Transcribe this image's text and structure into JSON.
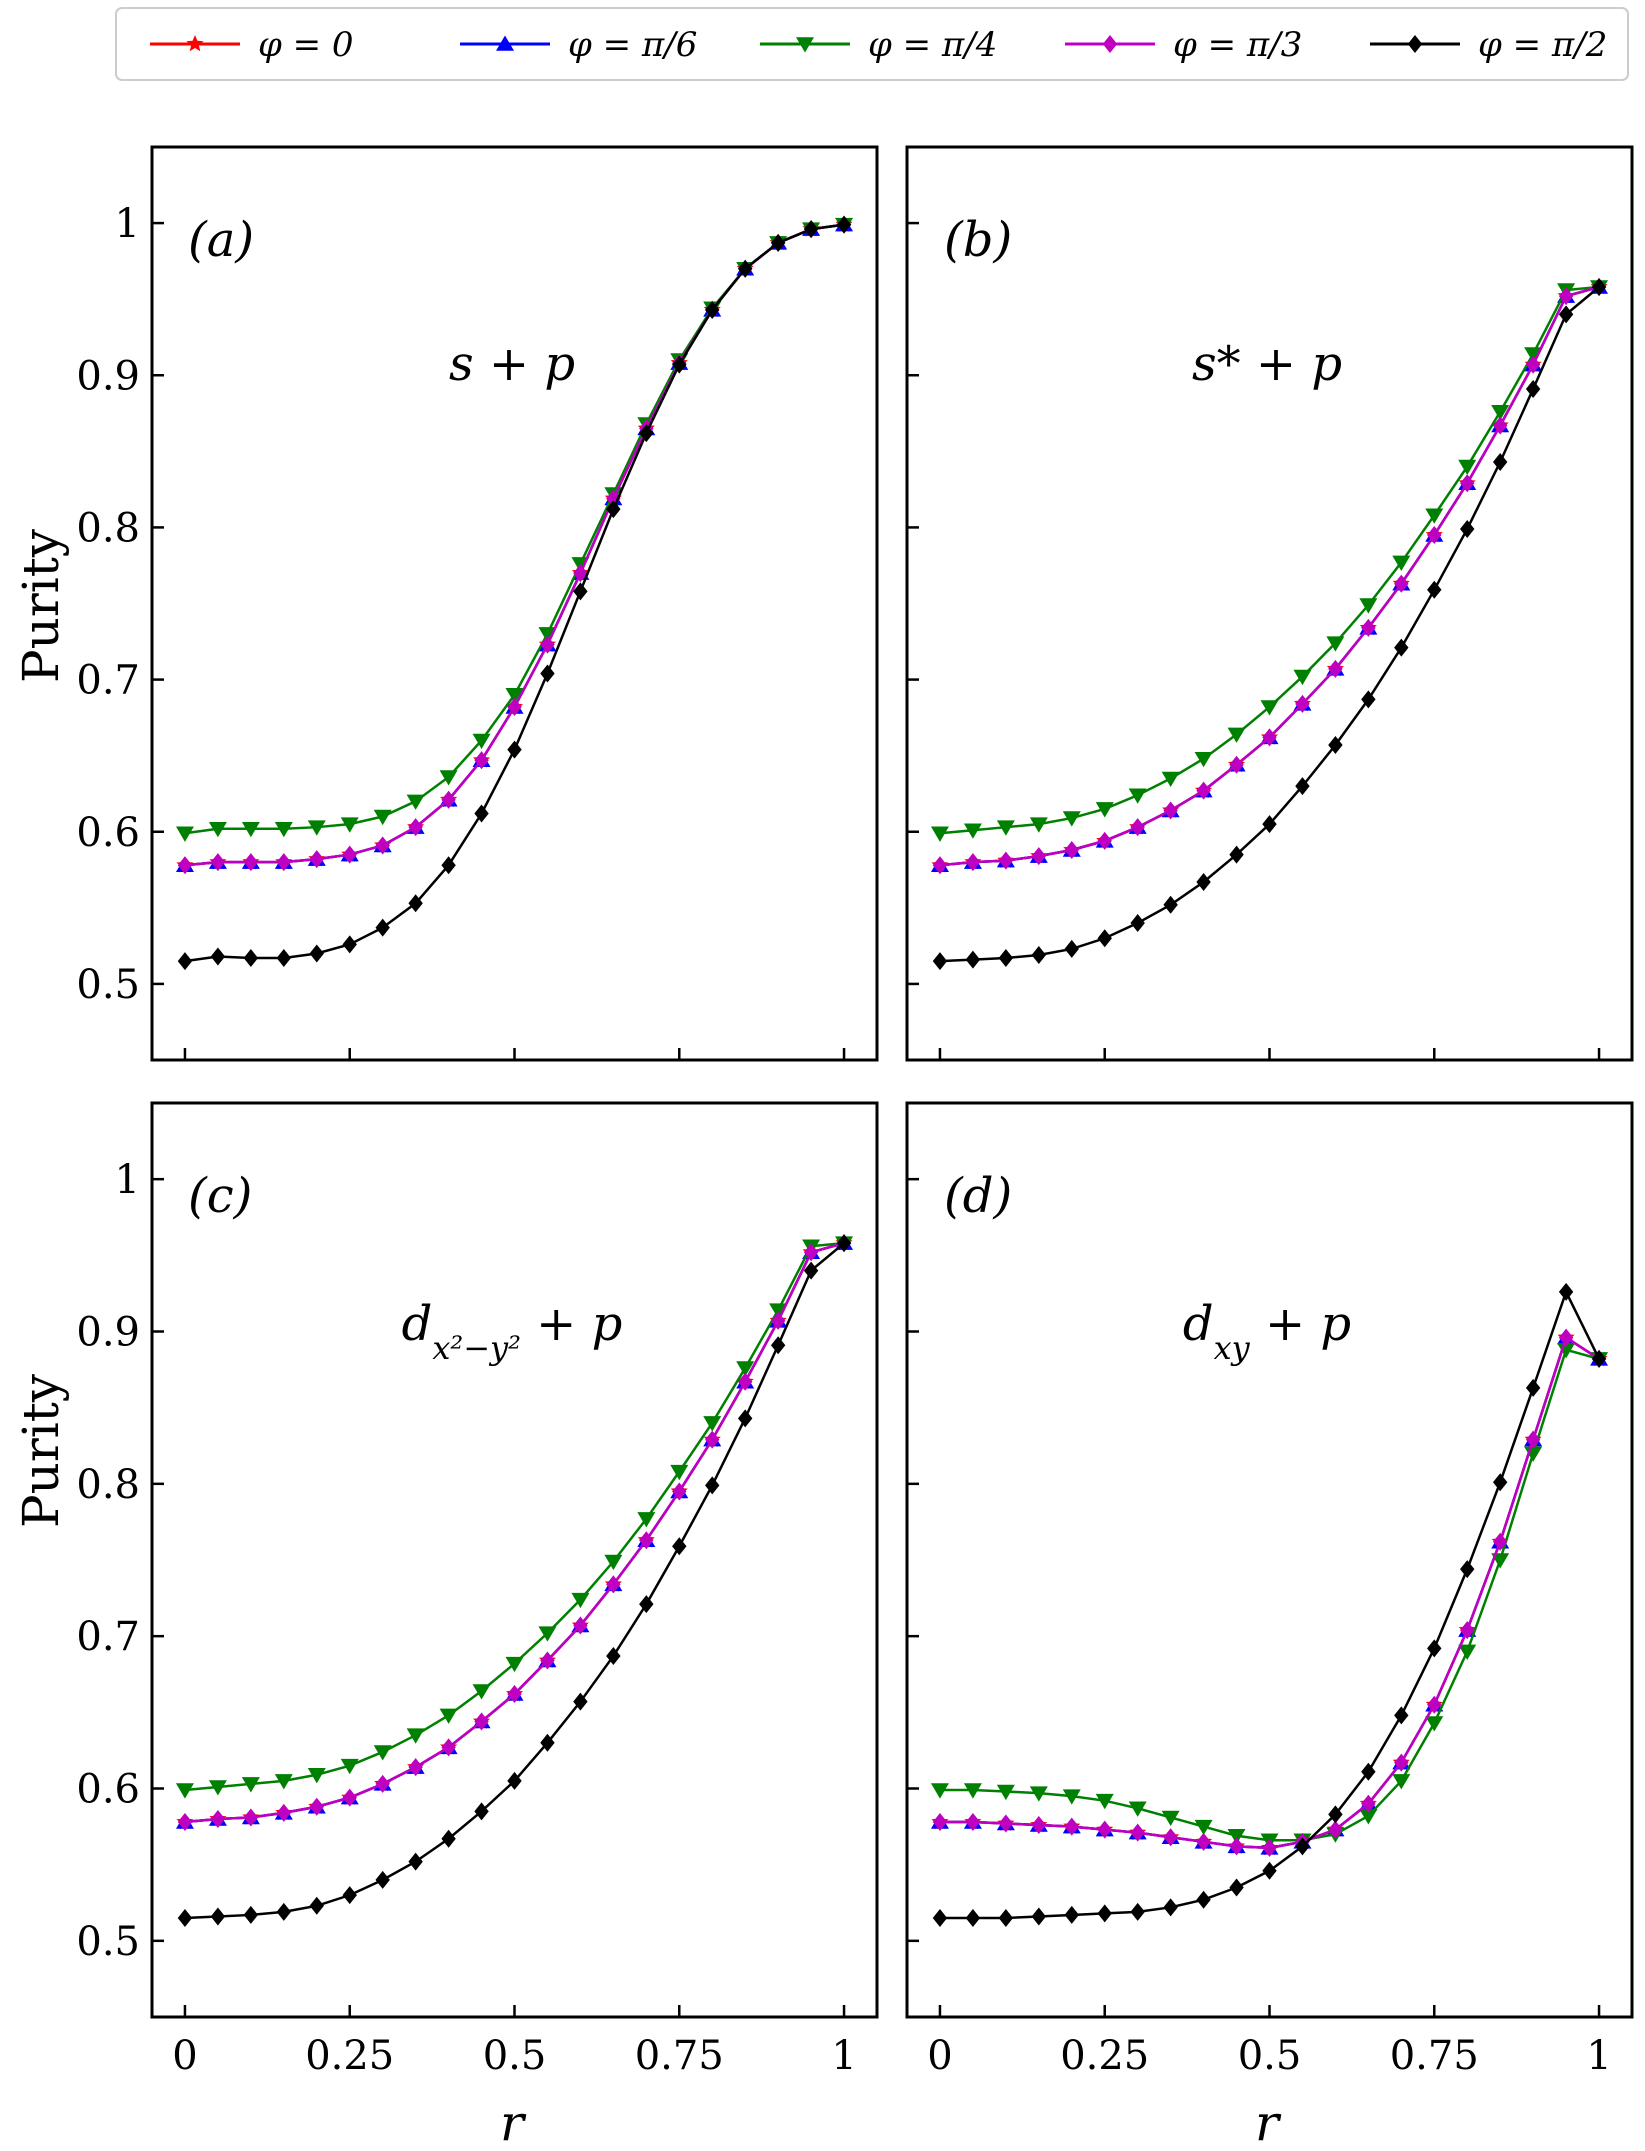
{
  "chart_data": {
    "type": "line",
    "xlabel": "r",
    "ylabel": "Purity",
    "xlim": [
      -0.05,
      1.05
    ],
    "ylim": [
      0.45,
      1.05
    ],
    "x_ticks": [
      0,
      0.25,
      0.5,
      0.75,
      1
    ],
    "x_tick_labels": [
      "0",
      "0.25",
      "0.5",
      "0.75",
      "1"
    ],
    "y_ticks": [
      0.5,
      0.6,
      0.7,
      0.8,
      0.9,
      1
    ],
    "y_tick_labels": [
      "0.5",
      "0.6",
      "0.7",
      "0.8",
      "0.9",
      "1"
    ],
    "x": [
      0,
      0.05,
      0.1,
      0.15,
      0.2,
      0.25,
      0.3,
      0.35,
      0.4,
      0.45,
      0.5,
      0.55,
      0.6,
      0.65,
      0.7,
      0.75,
      0.8,
      0.85,
      0.9,
      0.95,
      1
    ],
    "legend": {
      "placement": "top",
      "entries": [
        {
          "label": "φ = 0",
          "color": "#ff0000",
          "marker": "star"
        },
        {
          "label": "φ = π/6",
          "color": "#0000ff",
          "marker": "triangle-up"
        },
        {
          "label": "φ = π/4",
          "color": "#008000",
          "marker": "triangle-down"
        },
        {
          "label": "φ = π/3",
          "color": "#c000c0",
          "marker": "diamond"
        },
        {
          "label": "φ = π/2",
          "color": "#000000",
          "marker": "diamond"
        }
      ]
    },
    "panels": [
      {
        "id": "a",
        "panel_label": "(a)",
        "series_label": "s + p",
        "series": [
          {
            "name": "φ = 0",
            "values": [
              0.578,
              0.58,
              0.58,
              0.58,
              0.582,
              0.585,
              0.591,
              0.603,
              0.621,
              0.647,
              0.682,
              0.723,
              0.77,
              0.819,
              0.865,
              0.908,
              0.943,
              0.97,
              0.987,
              0.996,
              0.999
            ]
          },
          {
            "name": "φ = π/6",
            "values": [
              0.578,
              0.58,
              0.58,
              0.58,
              0.582,
              0.585,
              0.591,
              0.603,
              0.621,
              0.647,
              0.682,
              0.723,
              0.77,
              0.819,
              0.865,
              0.908,
              0.943,
              0.97,
              0.987,
              0.996,
              0.999
            ]
          },
          {
            "name": "φ = π/4",
            "values": [
              0.599,
              0.602,
              0.602,
              0.602,
              0.603,
              0.605,
              0.61,
              0.62,
              0.636,
              0.66,
              0.69,
              0.73,
              0.776,
              0.822,
              0.868,
              0.91,
              0.944,
              0.97,
              0.987,
              0.996,
              0.999
            ]
          },
          {
            "name": "φ = π/3",
            "values": [
              0.578,
              0.58,
              0.58,
              0.58,
              0.582,
              0.585,
              0.591,
              0.603,
              0.621,
              0.647,
              0.682,
              0.723,
              0.77,
              0.819,
              0.865,
              0.908,
              0.943,
              0.97,
              0.987,
              0.996,
              0.999
            ]
          },
          {
            "name": "φ = π/2",
            "values": [
              0.515,
              0.518,
              0.517,
              0.517,
              0.52,
              0.526,
              0.537,
              0.553,
              0.578,
              0.612,
              0.654,
              0.704,
              0.758,
              0.812,
              0.862,
              0.907,
              0.943,
              0.97,
              0.987,
              0.996,
              0.999
            ]
          }
        ]
      },
      {
        "id": "b",
        "panel_label": "(b)",
        "series_label": "s* + p",
        "series": [
          {
            "name": "φ = 0",
            "values": [
              0.578,
              0.58,
              0.581,
              0.584,
              0.588,
              0.594,
              0.603,
              0.614,
              0.627,
              0.644,
              0.662,
              0.684,
              0.707,
              0.734,
              0.763,
              0.795,
              0.829,
              0.867,
              0.907,
              0.952,
              0.958
            ]
          },
          {
            "name": "φ = π/6",
            "values": [
              0.578,
              0.58,
              0.581,
              0.584,
              0.588,
              0.594,
              0.603,
              0.614,
              0.627,
              0.644,
              0.662,
              0.684,
              0.707,
              0.734,
              0.763,
              0.795,
              0.829,
              0.867,
              0.907,
              0.952,
              0.958
            ]
          },
          {
            "name": "φ = π/4",
            "values": [
              0.599,
              0.601,
              0.603,
              0.605,
              0.609,
              0.615,
              0.624,
              0.635,
              0.648,
              0.664,
              0.682,
              0.702,
              0.724,
              0.749,
              0.777,
              0.808,
              0.84,
              0.876,
              0.914,
              0.956,
              0.958
            ]
          },
          {
            "name": "φ = π/3",
            "values": [
              0.578,
              0.58,
              0.581,
              0.584,
              0.588,
              0.594,
              0.603,
              0.614,
              0.627,
              0.644,
              0.662,
              0.684,
              0.707,
              0.734,
              0.763,
              0.795,
              0.829,
              0.867,
              0.907,
              0.952,
              0.958
            ]
          },
          {
            "name": "φ = π/2",
            "values": [
              0.515,
              0.516,
              0.517,
              0.519,
              0.523,
              0.53,
              0.54,
              0.552,
              0.567,
              0.585,
              0.605,
              0.63,
              0.657,
              0.687,
              0.721,
              0.759,
              0.799,
              0.843,
              0.891,
              0.94,
              0.958
            ]
          }
        ]
      },
      {
        "id": "c",
        "panel_label": "(c)",
        "series_label": "d_{x²−y²} + p",
        "series_label_main": "d",
        "series_label_sub": "x²−y²",
        "series_label_tail": " + p",
        "series": [
          {
            "name": "φ = 0",
            "values": [
              0.578,
              0.58,
              0.581,
              0.584,
              0.588,
              0.594,
              0.603,
              0.614,
              0.627,
              0.644,
              0.662,
              0.684,
              0.707,
              0.734,
              0.763,
              0.795,
              0.829,
              0.867,
              0.907,
              0.952,
              0.958
            ]
          },
          {
            "name": "φ = π/6",
            "values": [
              0.578,
              0.58,
              0.581,
              0.584,
              0.588,
              0.594,
              0.603,
              0.614,
              0.627,
              0.644,
              0.662,
              0.684,
              0.707,
              0.734,
              0.763,
              0.795,
              0.829,
              0.867,
              0.907,
              0.952,
              0.958
            ]
          },
          {
            "name": "φ = π/4",
            "values": [
              0.599,
              0.601,
              0.603,
              0.605,
              0.609,
              0.615,
              0.624,
              0.635,
              0.648,
              0.664,
              0.682,
              0.702,
              0.724,
              0.749,
              0.777,
              0.808,
              0.84,
              0.876,
              0.914,
              0.956,
              0.958
            ]
          },
          {
            "name": "φ = π/3",
            "values": [
              0.578,
              0.58,
              0.581,
              0.584,
              0.588,
              0.594,
              0.603,
              0.614,
              0.627,
              0.644,
              0.662,
              0.684,
              0.707,
              0.734,
              0.763,
              0.795,
              0.829,
              0.867,
              0.907,
              0.952,
              0.958
            ]
          },
          {
            "name": "φ = π/2",
            "values": [
              0.515,
              0.516,
              0.517,
              0.519,
              0.523,
              0.53,
              0.54,
              0.552,
              0.567,
              0.585,
              0.605,
              0.63,
              0.657,
              0.687,
              0.721,
              0.759,
              0.799,
              0.843,
              0.891,
              0.94,
              0.958
            ]
          }
        ]
      },
      {
        "id": "d",
        "panel_label": "(d)",
        "series_label": "d_{xy} + p",
        "series_label_main": "d",
        "series_label_sub": "xy",
        "series_label_tail": " + p",
        "series": [
          {
            "name": "φ = 0",
            "values": [
              0.578,
              0.578,
              0.577,
              0.576,
              0.575,
              0.573,
              0.571,
              0.568,
              0.565,
              0.562,
              0.561,
              0.565,
              0.573,
              0.59,
              0.617,
              0.655,
              0.704,
              0.762,
              0.829,
              0.896,
              0.882
            ]
          },
          {
            "name": "φ = π/6",
            "values": [
              0.578,
              0.578,
              0.577,
              0.576,
              0.575,
              0.573,
              0.571,
              0.568,
              0.565,
              0.562,
              0.561,
              0.565,
              0.573,
              0.59,
              0.617,
              0.655,
              0.704,
              0.762,
              0.829,
              0.896,
              0.882
            ]
          },
          {
            "name": "φ = π/4",
            "values": [
              0.599,
              0.599,
              0.598,
              0.597,
              0.595,
              0.592,
              0.587,
              0.581,
              0.575,
              0.569,
              0.566,
              0.566,
              0.57,
              0.582,
              0.605,
              0.643,
              0.69,
              0.75,
              0.82,
              0.888,
              0.882
            ]
          },
          {
            "name": "φ = π/3",
            "values": [
              0.578,
              0.578,
              0.577,
              0.576,
              0.575,
              0.573,
              0.571,
              0.568,
              0.565,
              0.562,
              0.561,
              0.565,
              0.573,
              0.59,
              0.617,
              0.655,
              0.704,
              0.762,
              0.829,
              0.896,
              0.882
            ]
          },
          {
            "name": "φ = π/2",
            "values": [
              0.515,
              0.515,
              0.515,
              0.516,
              0.517,
              0.518,
              0.519,
              0.522,
              0.527,
              0.535,
              0.546,
              0.562,
              0.583,
              0.611,
              0.648,
              0.692,
              0.744,
              0.801,
              0.863,
              0.926,
              0.882
            ]
          }
        ]
      }
    ]
  }
}
